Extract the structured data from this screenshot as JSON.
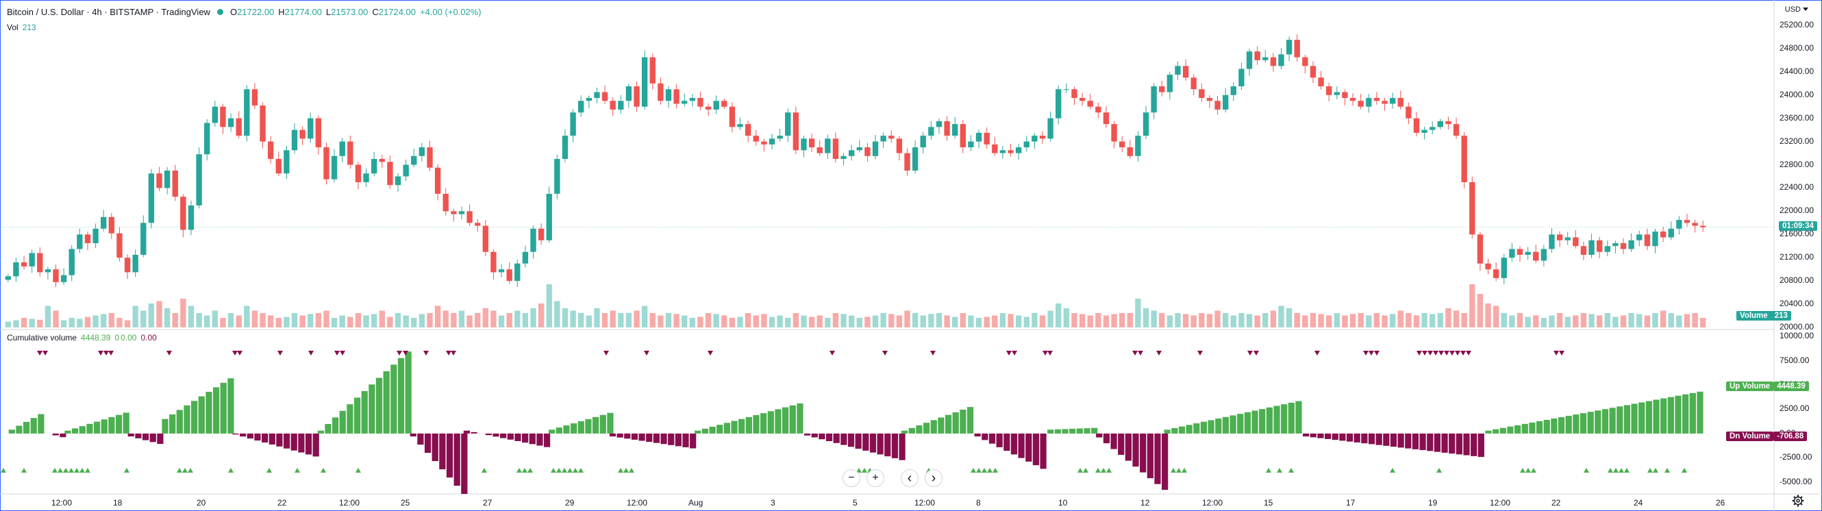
{
  "header": {
    "symbol": "Bitcoin / U.S. Dollar · 4h · BITSTAMP · TradingView",
    "open_label": "O",
    "open": "21722.00",
    "high_label": "H",
    "high": "21774.00",
    "low_label": "L",
    "low": "21573.00",
    "close_label": "C",
    "close": "21724.00",
    "change": "+4.00 (+0.02%)",
    "vol_label": "Vol",
    "vol_value": "213"
  },
  "currency": "USD",
  "indicator": {
    "name": "Cumulative volume",
    "value1": "4448.39",
    "value2_label": "0",
    "value2": "0.00",
    "value3": "0.00"
  },
  "price_axis": [
    "25200.00",
    "24800.00",
    "24400.00",
    "24000.00",
    "23600.00",
    "23200.00",
    "22800.00",
    "22400.00",
    "22000.00",
    "21600.00",
    "21200.00",
    "20800.00",
    "20400.00",
    "20000.00"
  ],
  "indicator_axis": [
    "10000.00",
    "7500.00",
    "5000.00",
    "2500.00",
    "0.00",
    "-2500.00",
    "-5000.00"
  ],
  "time_axis": [
    "12:00",
    "18",
    "20",
    "22",
    "12:00",
    "25",
    "27",
    "29",
    "12:00",
    "Aug",
    "3",
    "5",
    "12:00",
    "8",
    "10",
    "12",
    "12:00",
    "15",
    "17",
    "19",
    "12:00",
    "22",
    "24",
    "26"
  ],
  "badges": {
    "price": "01:09:34",
    "volume_label": "Volume",
    "volume_value": "213",
    "up_label": "Up Volume",
    "up_value": "4448.39",
    "dn_label": "Dn Volume",
    "dn_value": "-706.88"
  },
  "nav": {
    "zoom_out": "−",
    "zoom_in": "+",
    "prev": "‹",
    "next": "›"
  },
  "icons": {
    "settings": "gear-icon",
    "dropdown": "chevron-down-icon"
  },
  "colors": {
    "up": "#26a69a",
    "down": "#ef5350",
    "vol_up": "#9fd9d3",
    "vol_down": "#f7aaa8",
    "hist_up": "#4caf50",
    "hist_down": "#880e4f",
    "badge_price": "#26a69a",
    "badge_dn": "#880e4f"
  },
  "chart_data": {
    "type": "candlestick",
    "interval": "4h",
    "yrange": [
      20000,
      25400
    ],
    "close_series": [
      20880,
      21120,
      21050,
      21280,
      20950,
      21000,
      20780,
      20900,
      21350,
      21600,
      21450,
      21700,
      21900,
      21620,
      21200,
      20950,
      21250,
      21800,
      22650,
      22400,
      22700,
      22250,
      21680,
      22100,
      22980,
      23520,
      23800,
      23450,
      23600,
      23300,
      24100,
      23820,
      23200,
      22900,
      22650,
      23050,
      23400,
      23250,
      23600,
      23100,
      22550,
      22950,
      23200,
      22800,
      22500,
      22650,
      22900,
      22850,
      22450,
      22600,
      22800,
      22950,
      23100,
      22750,
      22300,
      22000,
      21950,
      22000,
      21800,
      21750,
      21300,
      20950,
      21000,
      20800,
      21100,
      21300,
      21700,
      21500,
      22300,
      22900,
      23300,
      23700,
      23900,
      23950,
      24050,
      23900,
      23750,
      23900,
      24150,
      23800,
      24650,
      24200,
      23900,
      24100,
      23850,
      23900,
      23950,
      23800,
      23750,
      23900,
      23800,
      23450,
      23500,
      23300,
      23200,
      23150,
      23250,
      23300,
      23700,
      23050,
      23250,
      23100,
      23000,
      23250,
      22900,
      22950,
      23050,
      23100,
      22950,
      23200,
      23300,
      23250,
      23000,
      22700,
      23100,
      23300,
      23450,
      23550,
      23300,
      23500,
      23100,
      23200,
      23350,
      23150,
      23000,
      23050,
      23000,
      23100,
      23200,
      23300,
      23250,
      23600,
      24100,
      24100,
      23950,
      23900,
      23800,
      23700,
      23500,
      23200,
      23100,
      22950,
      23300,
      23700,
      24150,
      24050,
      24350,
      24500,
      24300,
      24100,
      23950,
      23900,
      23750,
      24000,
      24150,
      24450,
      24750,
      24600,
      24650,
      24500,
      24700,
      24950,
      24650,
      24500,
      24300,
      24150,
      24000,
      24050,
      23950,
      23900,
      23800,
      23950,
      23900,
      23850,
      23950,
      23800,
      23600,
      23350,
      23400,
      23450,
      23550,
      23500,
      23300,
      22500,
      21600,
      21100,
      21000,
      20850,
      21200,
      21350,
      21250,
      21300,
      21150,
      21350,
      21600,
      21500,
      21550,
      21400,
      21250,
      21500,
      21300,
      21400,
      21450,
      21350,
      21500,
      21600,
      21400,
      21650,
      21550,
      21700,
      21850,
      21800,
      21750,
      21724
    ],
    "volume_series": [
      0.12,
      0.15,
      0.2,
      0.18,
      0.16,
      0.45,
      0.35,
      0.15,
      0.2,
      0.18,
      0.22,
      0.25,
      0.28,
      0.3,
      0.2,
      0.15,
      0.45,
      0.35,
      0.5,
      0.55,
      0.4,
      0.3,
      0.6,
      0.45,
      0.3,
      0.25,
      0.35,
      0.2,
      0.3,
      0.25,
      0.45,
      0.35,
      0.3,
      0.25,
      0.2,
      0.22,
      0.3,
      0.25,
      0.28,
      0.3,
      0.35,
      0.2,
      0.25,
      0.22,
      0.3,
      0.25,
      0.28,
      0.35,
      0.22,
      0.3,
      0.25,
      0.2,
      0.28,
      0.3,
      0.45,
      0.35,
      0.3,
      0.35,
      0.25,
      0.3,
      0.4,
      0.35,
      0.25,
      0.3,
      0.35,
      0.3,
      0.4,
      0.5,
      0.9,
      0.55,
      0.4,
      0.35,
      0.3,
      0.25,
      0.4,
      0.3,
      0.35,
      0.3,
      0.3,
      0.35,
      0.45,
      0.3,
      0.25,
      0.3,
      0.28,
      0.25,
      0.2,
      0.22,
      0.3,
      0.28,
      0.25,
      0.2,
      0.22,
      0.3,
      0.25,
      0.28,
      0.22,
      0.25,
      0.2,
      0.3,
      0.25,
      0.22,
      0.25,
      0.2,
      0.3,
      0.28,
      0.25,
      0.2,
      0.22,
      0.25,
      0.3,
      0.28,
      0.25,
      0.35,
      0.3,
      0.25,
      0.28,
      0.3,
      0.25,
      0.22,
      0.3,
      0.25,
      0.2,
      0.22,
      0.25,
      0.3,
      0.28,
      0.25,
      0.22,
      0.3,
      0.25,
      0.35,
      0.5,
      0.4,
      0.3,
      0.28,
      0.25,
      0.3,
      0.25,
      0.28,
      0.3,
      0.3,
      0.6,
      0.4,
      0.35,
      0.3,
      0.25,
      0.3,
      0.28,
      0.25,
      0.3,
      0.28,
      0.35,
      0.3,
      0.25,
      0.3,
      0.28,
      0.25,
      0.3,
      0.35,
      0.45,
      0.4,
      0.3,
      0.25,
      0.3,
      0.28,
      0.25,
      0.3,
      0.25,
      0.28,
      0.3,
      0.25,
      0.3,
      0.25,
      0.28,
      0.35,
      0.3,
      0.25,
      0.3,
      0.28,
      0.3,
      0.4,
      0.35,
      0.3,
      0.9,
      0.7,
      0.5,
      0.45,
      0.3,
      0.25,
      0.3,
      0.22,
      0.25,
      0.2,
      0.25,
      0.3,
      0.22,
      0.25,
      0.3,
      0.28,
      0.25,
      0.3,
      0.22,
      0.25,
      0.3,
      0.28,
      0.25,
      0.3,
      0.35,
      0.3,
      0.25,
      0.28,
      0.3,
      0.2
    ]
  }
}
